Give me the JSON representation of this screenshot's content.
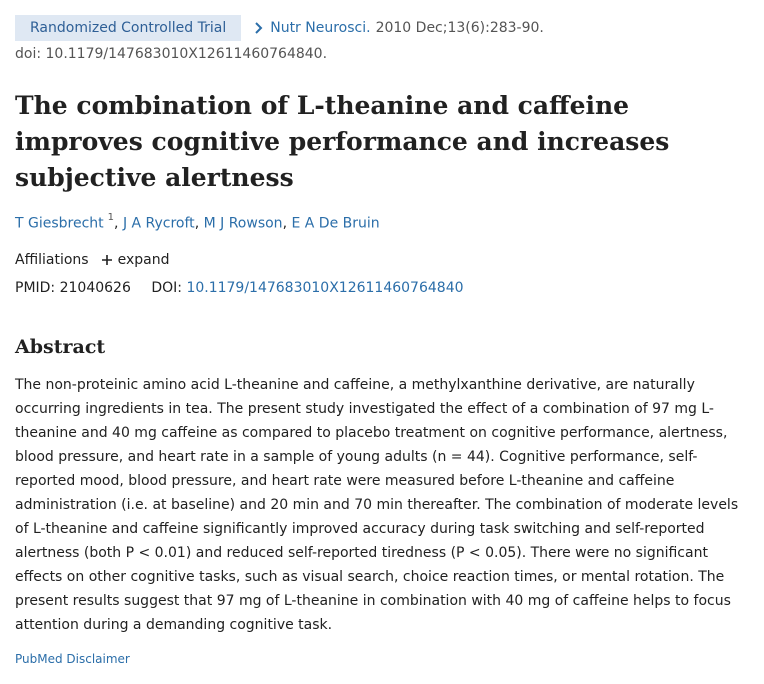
{
  "header": {
    "article_type": "Randomized Controlled Trial",
    "journal": "Nutr Neurosci.",
    "citation": "2010 Dec;13(6):283-90.",
    "doi_line": "doi: 10.1179/147683010X12611460764840."
  },
  "title": "The combination of L-theanine and caffeine improves cognitive performance and increases subjective alertness",
  "authors": [
    {
      "name": "T Giesbrecht",
      "sup": "1",
      "sep": ","
    },
    {
      "name": "J A Rycroft",
      "sep": ","
    },
    {
      "name": "M J Rowson",
      "sep": ","
    },
    {
      "name": "E A De Bruin",
      "sep": ""
    }
  ],
  "affiliations": {
    "label": "Affiliations",
    "expand": "expand"
  },
  "identifiers": {
    "pmid_label": "PMID:",
    "pmid": "21040626",
    "doi_label": "DOI:",
    "doi": "10.1179/147683010X12611460764840"
  },
  "abstract": {
    "heading": "Abstract",
    "text": "The non-proteinic amino acid L-theanine and caffeine, a methylxanthine derivative, are naturally occurring ingredients in tea. The present study investigated the effect of a combination of 97 mg L-theanine and 40 mg caffeine as compared to placebo treatment on cognitive performance, alertness, blood pressure, and heart rate in a sample of young adults (n = 44). Cognitive performance, self-reported mood, blood pressure, and heart rate were measured before L-theanine and caffeine administration (i.e. at baseline) and 20 min and 70 min thereafter. The combination of moderate levels of L-theanine and caffeine significantly improved accuracy during task switching and self-reported alertness (both P < 0.01) and reduced self-reported tiredness (P < 0.05). There were no significant effects on other cognitive tasks, such as visual search, choice reaction times, or mental rotation. The present results suggest that 97 mg of L-theanine in combination with 40 mg of caffeine helps to focus attention during a demanding cognitive task."
  },
  "disclaimer": "PubMed Disclaimer",
  "colors": {
    "link": "#2b6ea9",
    "badge_bg": "#dfe8f3",
    "badge_text": "#2e5f96",
    "text": "#212121"
  },
  "icons": {
    "journal_chevron": "chevron-right-icon",
    "expand": "plus-icon"
  }
}
